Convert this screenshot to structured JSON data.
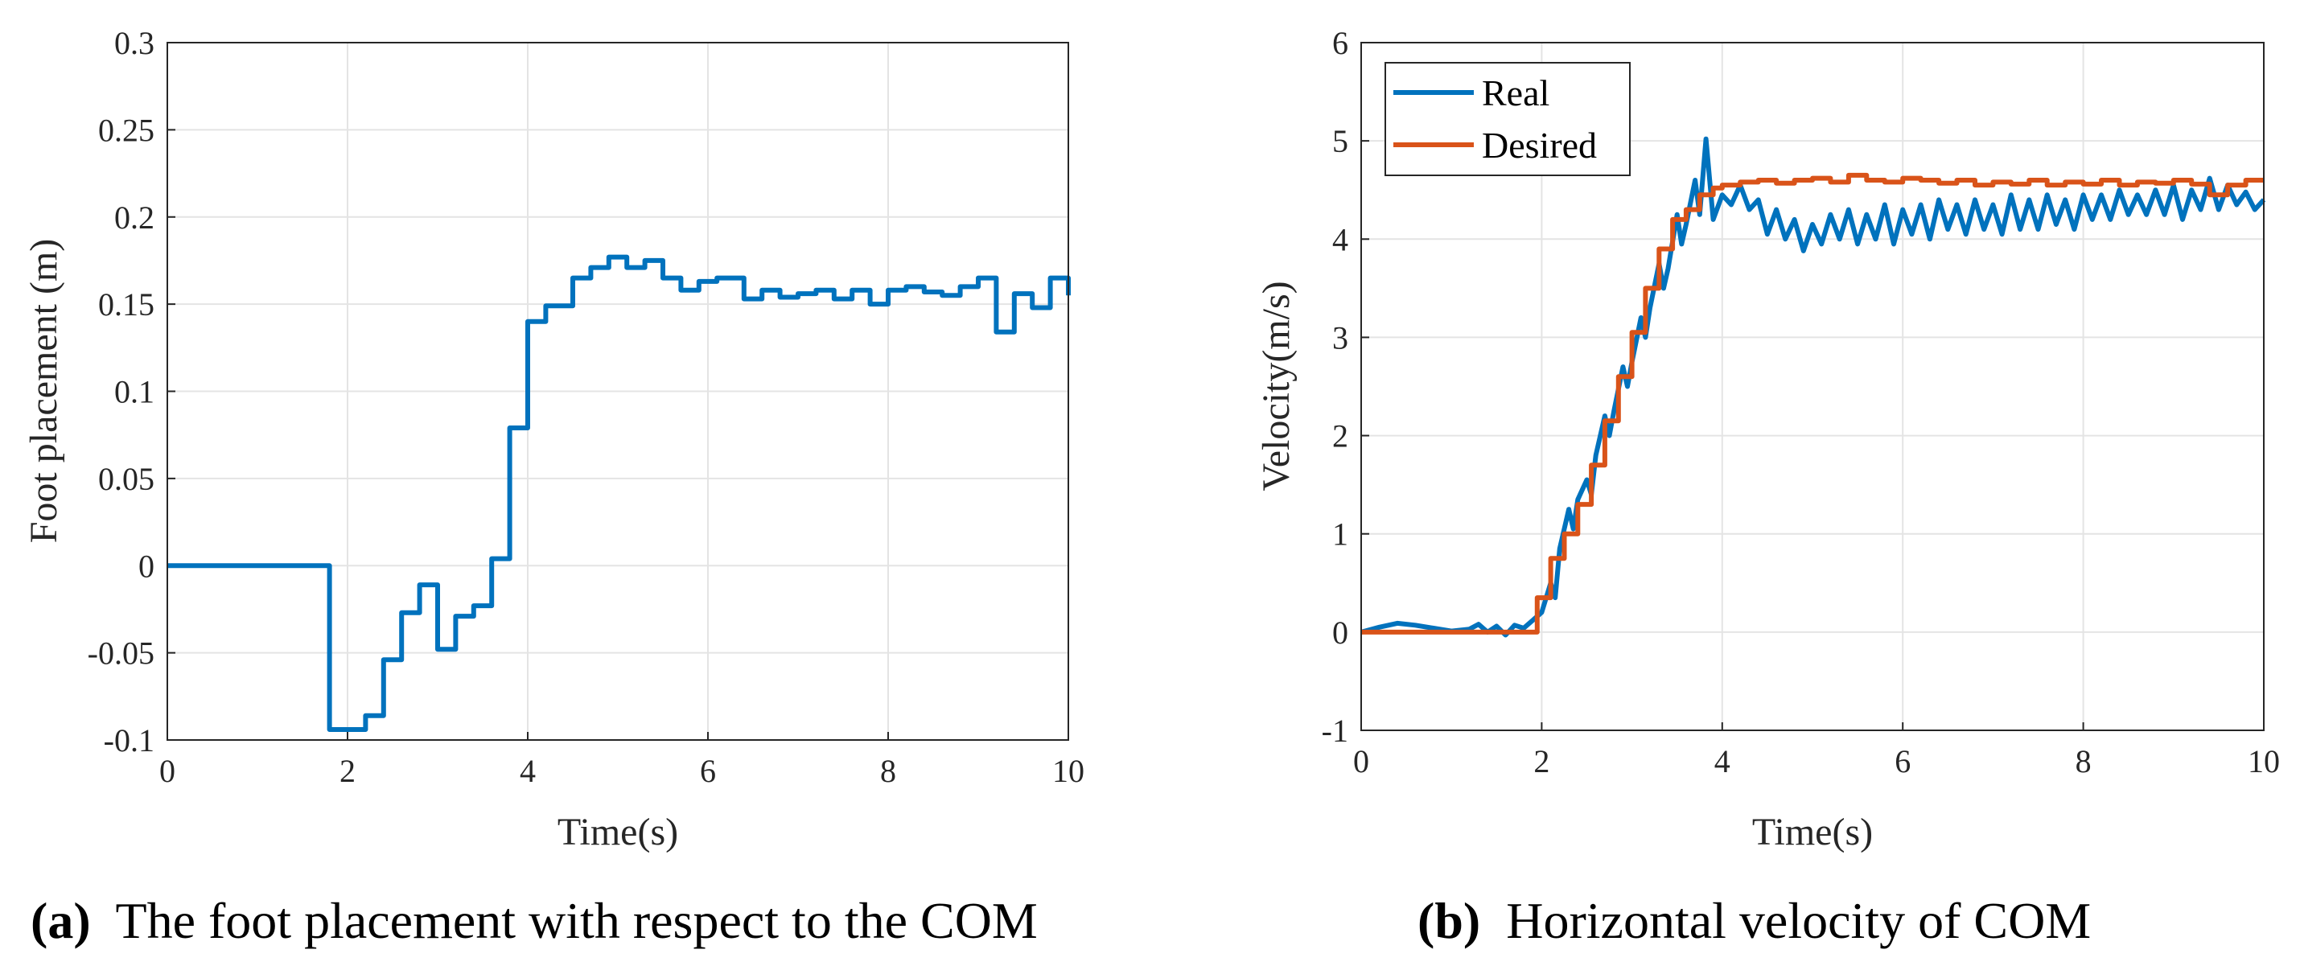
{
  "chart_data": [
    {
      "type": "line",
      "panel": "a",
      "xlabel": "Time(s)",
      "ylabel": "Foot placement (m)",
      "xlim": [
        0,
        10
      ],
      "ylim": [
        -0.1,
        0.3
      ],
      "xticks": [
        "0",
        "2",
        "4",
        "6",
        "8",
        "10"
      ],
      "yticks": [
        "-0.1",
        "-0.05",
        "0",
        "0.05",
        "0.1",
        "0.15",
        "0.2",
        "0.25",
        "0.3"
      ],
      "grid": true,
      "colors": [
        "#0072BD"
      ],
      "series": [
        {
          "name": "Foot placement",
          "step": true,
          "x": [
            0,
            1.8,
            2.2,
            2.4,
            2.6,
            2.8,
            3.0,
            3.2,
            3.4,
            3.6,
            3.8,
            4.0,
            4.2,
            4.5,
            4.7,
            4.9,
            5.1,
            5.3,
            5.5,
            5.7,
            5.9,
            6.1,
            6.4,
            6.6,
            6.8,
            7.0,
            7.2,
            7.4,
            7.6,
            7.8,
            8.0,
            8.2,
            8.4,
            8.6,
            8.8,
            9.0,
            9.2,
            9.4,
            9.6,
            9.8,
            10.0
          ],
          "y": [
            0,
            -0.094,
            -0.086,
            -0.054,
            -0.027,
            -0.011,
            -0.048,
            -0.029,
            -0.023,
            0.004,
            0.079,
            0.14,
            0.149,
            0.165,
            0.171,
            0.177,
            0.171,
            0.175,
            0.165,
            0.158,
            0.163,
            0.165,
            0.153,
            0.158,
            0.154,
            0.156,
            0.158,
            0.153,
            0.158,
            0.15,
            0.158,
            0.16,
            0.157,
            0.155,
            0.16,
            0.165,
            0.134,
            0.156,
            0.148,
            0.165,
            0.155
          ]
        }
      ]
    },
    {
      "type": "line",
      "panel": "b",
      "xlabel": "Time(s)",
      "ylabel": "Velocity(m/s)",
      "xlim": [
        0,
        10
      ],
      "ylim": [
        -1,
        6
      ],
      "xticks": [
        "0",
        "2",
        "4",
        "6",
        "8",
        "10"
      ],
      "yticks": [
        "-1",
        "0",
        "1",
        "2",
        "3",
        "4",
        "5",
        "6"
      ],
      "grid": true,
      "legend_position": "top-left",
      "series": [
        {
          "name": "Real",
          "color": "#0072BD",
          "x": [
            0,
            0.2,
            0.4,
            0.6,
            0.8,
            1.0,
            1.2,
            1.3,
            1.4,
            1.5,
            1.6,
            1.7,
            1.8,
            1.9,
            2.0,
            2.1,
            2.15,
            2.2,
            2.3,
            2.35,
            2.4,
            2.5,
            2.55,
            2.6,
            2.7,
            2.75,
            2.8,
            2.9,
            2.95,
            3.0,
            3.1,
            3.15,
            3.2,
            3.3,
            3.35,
            3.4,
            3.5,
            3.55,
            3.6,
            3.7,
            3.75,
            3.82,
            3.9,
            4.0,
            4.1,
            4.2,
            4.3,
            4.4,
            4.5,
            4.6,
            4.7,
            4.8,
            4.9,
            5.0,
            5.1,
            5.2,
            5.3,
            5.4,
            5.5,
            5.6,
            5.7,
            5.8,
            5.9,
            6.0,
            6.1,
            6.2,
            6.3,
            6.4,
            6.5,
            6.6,
            6.7,
            6.8,
            6.9,
            7.0,
            7.1,
            7.2,
            7.3,
            7.4,
            7.5,
            7.6,
            7.7,
            7.8,
            7.9,
            8.0,
            8.1,
            8.2,
            8.3,
            8.4,
            8.5,
            8.6,
            8.7,
            8.8,
            8.9,
            9.0,
            9.1,
            9.2,
            9.3,
            9.4,
            9.5,
            9.6,
            9.7,
            9.8,
            9.9,
            10.0
          ],
          "y": [
            0,
            0.05,
            0.09,
            0.07,
            0.04,
            0.01,
            0.03,
            0.08,
            0.0,
            0.06,
            -0.03,
            0.07,
            0.04,
            0.12,
            0.2,
            0.5,
            0.35,
            0.85,
            1.25,
            1.05,
            1.35,
            1.55,
            1.4,
            1.8,
            2.2,
            2.0,
            2.25,
            2.7,
            2.5,
            2.75,
            3.2,
            3.0,
            3.3,
            3.75,
            3.5,
            3.7,
            4.25,
            3.95,
            4.15,
            4.6,
            4.25,
            5.02,
            4.2,
            4.45,
            4.35,
            4.55,
            4.3,
            4.4,
            4.05,
            4.3,
            4.0,
            4.2,
            3.88,
            4.15,
            3.95,
            4.25,
            4.0,
            4.3,
            3.95,
            4.25,
            4.0,
            4.35,
            3.95,
            4.3,
            4.05,
            4.35,
            4.0,
            4.4,
            4.1,
            4.35,
            4.05,
            4.4,
            4.1,
            4.35,
            4.05,
            4.45,
            4.1,
            4.4,
            4.1,
            4.45,
            4.15,
            4.4,
            4.1,
            4.45,
            4.2,
            4.45,
            4.2,
            4.5,
            4.25,
            4.45,
            4.25,
            4.5,
            4.25,
            4.55,
            4.2,
            4.5,
            4.3,
            4.62,
            4.3,
            4.55,
            4.35,
            4.48,
            4.3,
            4.4
          ]
        },
        {
          "name": "Desired",
          "color": "#D95319",
          "step": true,
          "x": [
            0,
            1.95,
            2.1,
            2.25,
            2.4,
            2.55,
            2.7,
            2.85,
            3.0,
            3.15,
            3.3,
            3.45,
            3.6,
            3.75,
            3.9,
            4.0,
            4.2,
            4.4,
            4.6,
            4.8,
            5.0,
            5.2,
            5.4,
            5.6,
            5.8,
            6.0,
            6.2,
            6.4,
            6.6,
            6.8,
            7.0,
            7.2,
            7.4,
            7.6,
            7.8,
            8.0,
            8.2,
            8.4,
            8.6,
            8.8,
            9.0,
            9.2,
            9.4,
            9.6,
            9.8,
            10.0
          ],
          "y": [
            0,
            0.35,
            0.75,
            1.0,
            1.3,
            1.7,
            2.15,
            2.6,
            3.05,
            3.5,
            3.9,
            4.2,
            4.3,
            4.45,
            4.52,
            4.55,
            4.58,
            4.6,
            4.57,
            4.6,
            4.62,
            4.58,
            4.65,
            4.6,
            4.58,
            4.62,
            4.6,
            4.57,
            4.6,
            4.55,
            4.58,
            4.56,
            4.6,
            4.55,
            4.58,
            4.56,
            4.6,
            4.55,
            4.58,
            4.57,
            4.6,
            4.56,
            4.45,
            4.55,
            4.6,
            4.6
          ]
        }
      ]
    }
  ],
  "captions": {
    "a_label": "(a)",
    "a_text": "The foot placement with respect to the COM",
    "b_label": "(b)",
    "b_text": "Horizontal velocity of COM"
  }
}
